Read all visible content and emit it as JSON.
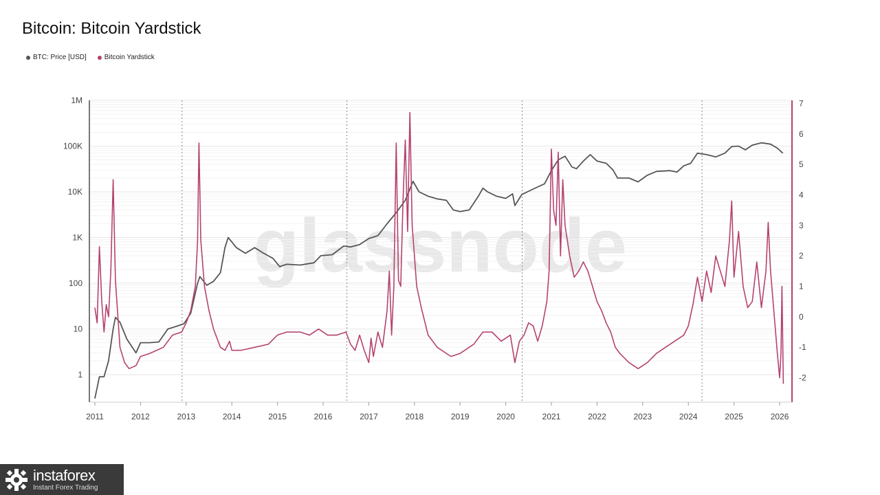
{
  "page": {
    "title": "Bitcoin: Bitcoin Yardstick",
    "watermark": "glassnode"
  },
  "legend": [
    {
      "label": "BTC: Price [USD]",
      "color": "#555555"
    },
    {
      "label": "Bitcoin Yardstick",
      "color": "#b5416f"
    }
  ],
  "branding": {
    "name": "instaforex",
    "tagline": "Instant Forex Trading"
  },
  "chart_data": {
    "type": "line",
    "title": "Bitcoin: Bitcoin Yardstick",
    "x_ticks": [
      "2011",
      "2012",
      "2013",
      "2014",
      "2015",
      "2016",
      "2017",
      "2018",
      "2019",
      "2020",
      "2021",
      "2022",
      "2023",
      "2024",
      "2025",
      "2026"
    ],
    "y_left": {
      "scale": "log",
      "ticks": [
        "1",
        "10",
        "100",
        "1K",
        "10K",
        "100K",
        "1M"
      ],
      "tick_values": [
        1,
        10,
        100,
        1000,
        10000,
        100000,
        1000000
      ]
    },
    "y_right": {
      "scale": "linear",
      "ticks": [
        "-2",
        "-1",
        "0",
        "1",
        "2",
        "3",
        "4",
        "5",
        "6",
        "7"
      ],
      "range": [
        -2.8,
        7.1
      ]
    },
    "halving_dates": [
      2012.91,
      2016.52,
      2020.36,
      2024.3
    ],
    "grid": true,
    "legend_position": "top-left",
    "series": [
      {
        "name": "BTC: Price [USD]",
        "axis": "left",
        "color": "#555555",
        "points": [
          [
            2011.0,
            0.3
          ],
          [
            2011.1,
            0.9
          ],
          [
            2011.2,
            0.9
          ],
          [
            2011.3,
            2
          ],
          [
            2011.4,
            10
          ],
          [
            2011.45,
            18
          ],
          [
            2011.55,
            14
          ],
          [
            2011.7,
            6
          ],
          [
            2011.9,
            3
          ],
          [
            2012.0,
            5
          ],
          [
            2012.2,
            5
          ],
          [
            2012.4,
            5.2
          ],
          [
            2012.6,
            10
          ],
          [
            2012.8,
            11.5
          ],
          [
            2012.95,
            13
          ],
          [
            2013.1,
            22
          ],
          [
            2013.25,
            100
          ],
          [
            2013.3,
            140
          ],
          [
            2013.45,
            90
          ],
          [
            2013.6,
            110
          ],
          [
            2013.75,
            170
          ],
          [
            2013.85,
            600
          ],
          [
            2013.92,
            1000
          ],
          [
            2014.0,
            800
          ],
          [
            2014.1,
            600
          ],
          [
            2014.3,
            450
          ],
          [
            2014.5,
            600
          ],
          [
            2014.7,
            450
          ],
          [
            2014.9,
            350
          ],
          [
            2015.05,
            230
          ],
          [
            2015.2,
            260
          ],
          [
            2015.5,
            250
          ],
          [
            2015.8,
            280
          ],
          [
            2015.95,
            400
          ],
          [
            2016.2,
            420
          ],
          [
            2016.45,
            650
          ],
          [
            2016.6,
            620
          ],
          [
            2016.8,
            700
          ],
          [
            2017.0,
            950
          ],
          [
            2017.2,
            1100
          ],
          [
            2017.4,
            2000
          ],
          [
            2017.6,
            3500
          ],
          [
            2017.8,
            6500
          ],
          [
            2017.97,
            17000
          ],
          [
            2018.1,
            10000
          ],
          [
            2018.3,
            8000
          ],
          [
            2018.5,
            7000
          ],
          [
            2018.7,
            6500
          ],
          [
            2018.85,
            4000
          ],
          [
            2019.0,
            3700
          ],
          [
            2019.2,
            4000
          ],
          [
            2019.4,
            8000
          ],
          [
            2019.5,
            12000
          ],
          [
            2019.6,
            10000
          ],
          [
            2019.8,
            8000
          ],
          [
            2020.0,
            7200
          ],
          [
            2020.15,
            9000
          ],
          [
            2020.2,
            5000
          ],
          [
            2020.35,
            8700
          ],
          [
            2020.6,
            11500
          ],
          [
            2020.85,
            15000
          ],
          [
            2021.0,
            29000
          ],
          [
            2021.15,
            50000
          ],
          [
            2021.3,
            60000
          ],
          [
            2021.45,
            35000
          ],
          [
            2021.55,
            32000
          ],
          [
            2021.7,
            47000
          ],
          [
            2021.85,
            65000
          ],
          [
            2022.0,
            47000
          ],
          [
            2022.2,
            42000
          ],
          [
            2022.35,
            30000
          ],
          [
            2022.45,
            20000
          ],
          [
            2022.7,
            20000
          ],
          [
            2022.9,
            16500
          ],
          [
            2023.1,
            23000
          ],
          [
            2023.3,
            28000
          ],
          [
            2023.6,
            29000
          ],
          [
            2023.75,
            27000
          ],
          [
            2023.9,
            37000
          ],
          [
            2024.05,
            42000
          ],
          [
            2024.2,
            70000
          ],
          [
            2024.4,
            65000
          ],
          [
            2024.6,
            58000
          ],
          [
            2024.8,
            70000
          ],
          [
            2024.95,
            98000
          ],
          [
            2025.1,
            100000
          ],
          [
            2025.25,
            83000
          ],
          [
            2025.4,
            105000
          ],
          [
            2025.6,
            118000
          ],
          [
            2025.8,
            110000
          ],
          [
            2025.95,
            90000
          ],
          [
            2026.07,
            70000
          ]
        ]
      },
      {
        "name": "Bitcoin Yardstick",
        "axis": "right",
        "color": "#b5416f",
        "points": [
          [
            2011.0,
            0.3
          ],
          [
            2011.05,
            -0.2
          ],
          [
            2011.1,
            2.3
          ],
          [
            2011.15,
            0.5
          ],
          [
            2011.2,
            -0.5
          ],
          [
            2011.25,
            0.4
          ],
          [
            2011.3,
            0.0
          ],
          [
            2011.35,
            1.5
          ],
          [
            2011.4,
            4.5
          ],
          [
            2011.45,
            1.2
          ],
          [
            2011.55,
            -1.0
          ],
          [
            2011.65,
            -1.5
          ],
          [
            2011.75,
            -1.7
          ],
          [
            2011.9,
            -1.6
          ],
          [
            2012.0,
            -1.3
          ],
          [
            2012.2,
            -1.2
          ],
          [
            2012.5,
            -1.0
          ],
          [
            2012.7,
            -0.6
          ],
          [
            2012.9,
            -0.5
          ],
          [
            2013.0,
            -0.2
          ],
          [
            2013.1,
            0.2
          ],
          [
            2013.2,
            1.0
          ],
          [
            2013.25,
            2.5
          ],
          [
            2013.28,
            5.7
          ],
          [
            2013.32,
            2.5
          ],
          [
            2013.4,
            1.0
          ],
          [
            2013.5,
            0.2
          ],
          [
            2013.6,
            -0.4
          ],
          [
            2013.75,
            -1.0
          ],
          [
            2013.85,
            -1.1
          ],
          [
            2013.95,
            -0.8
          ],
          [
            2014.0,
            -1.1
          ],
          [
            2014.2,
            -1.1
          ],
          [
            2014.5,
            -1.0
          ],
          [
            2014.8,
            -0.9
          ],
          [
            2015.0,
            -0.6
          ],
          [
            2015.2,
            -0.5
          ],
          [
            2015.5,
            -0.5
          ],
          [
            2015.7,
            -0.6
          ],
          [
            2015.9,
            -0.4
          ],
          [
            2016.1,
            -0.6
          ],
          [
            2016.3,
            -0.6
          ],
          [
            2016.5,
            -0.5
          ],
          [
            2016.6,
            -0.9
          ],
          [
            2016.7,
            -1.1
          ],
          [
            2016.8,
            -0.6
          ],
          [
            2016.9,
            -1.1
          ],
          [
            2017.0,
            -1.5
          ],
          [
            2017.05,
            -0.7
          ],
          [
            2017.1,
            -1.3
          ],
          [
            2017.2,
            -0.5
          ],
          [
            2017.3,
            -1.0
          ],
          [
            2017.4,
            0.2
          ],
          [
            2017.45,
            1.5
          ],
          [
            2017.5,
            -0.6
          ],
          [
            2017.55,
            1.0
          ],
          [
            2017.6,
            5.7
          ],
          [
            2017.65,
            1.2
          ],
          [
            2017.7,
            1.0
          ],
          [
            2017.75,
            3.8
          ],
          [
            2017.8,
            5.8
          ],
          [
            2017.85,
            2.8
          ],
          [
            2017.9,
            6.7
          ],
          [
            2017.95,
            3.0
          ],
          [
            2018.05,
            1.0
          ],
          [
            2018.15,
            0.3
          ],
          [
            2018.3,
            -0.6
          ],
          [
            2018.5,
            -1.0
          ],
          [
            2018.8,
            -1.3
          ],
          [
            2019.0,
            -1.2
          ],
          [
            2019.3,
            -0.9
          ],
          [
            2019.5,
            -0.5
          ],
          [
            2019.7,
            -0.5
          ],
          [
            2019.9,
            -0.8
          ],
          [
            2020.1,
            -0.6
          ],
          [
            2020.2,
            -1.5
          ],
          [
            2020.3,
            -0.8
          ],
          [
            2020.4,
            -0.6
          ],
          [
            2020.5,
            -0.2
          ],
          [
            2020.6,
            -0.3
          ],
          [
            2020.7,
            -0.8
          ],
          [
            2020.8,
            -0.3
          ],
          [
            2020.9,
            0.5
          ],
          [
            2020.95,
            1.5
          ],
          [
            2021.0,
            5.5
          ],
          [
            2021.05,
            3.5
          ],
          [
            2021.1,
            3.0
          ],
          [
            2021.15,
            5.4
          ],
          [
            2021.2,
            2.0
          ],
          [
            2021.25,
            4.5
          ],
          [
            2021.3,
            3.0
          ],
          [
            2021.4,
            2.0
          ],
          [
            2021.5,
            1.3
          ],
          [
            2021.6,
            1.5
          ],
          [
            2021.7,
            1.8
          ],
          [
            2021.8,
            1.5
          ],
          [
            2021.9,
            1.0
          ],
          [
            2022.0,
            0.5
          ],
          [
            2022.1,
            0.2
          ],
          [
            2022.2,
            -0.2
          ],
          [
            2022.3,
            -0.5
          ],
          [
            2022.4,
            -1.0
          ],
          [
            2022.5,
            -1.2
          ],
          [
            2022.7,
            -1.5
          ],
          [
            2022.9,
            -1.7
          ],
          [
            2023.1,
            -1.5
          ],
          [
            2023.3,
            -1.2
          ],
          [
            2023.5,
            -1.0
          ],
          [
            2023.7,
            -0.8
          ],
          [
            2023.9,
            -0.6
          ],
          [
            2024.0,
            -0.3
          ],
          [
            2024.1,
            0.4
          ],
          [
            2024.2,
            1.3
          ],
          [
            2024.3,
            0.5
          ],
          [
            2024.4,
            1.5
          ],
          [
            2024.5,
            0.8
          ],
          [
            2024.6,
            2.0
          ],
          [
            2024.7,
            1.5
          ],
          [
            2024.8,
            1.0
          ],
          [
            2024.9,
            2.5
          ],
          [
            2024.95,
            3.8
          ],
          [
            2025.0,
            1.3
          ],
          [
            2025.1,
            2.8
          ],
          [
            2025.2,
            1.0
          ],
          [
            2025.3,
            0.3
          ],
          [
            2025.4,
            0.5
          ],
          [
            2025.5,
            1.8
          ],
          [
            2025.6,
            0.3
          ],
          [
            2025.7,
            1.5
          ],
          [
            2025.75,
            3.1
          ],
          [
            2025.8,
            1.5
          ],
          [
            2025.9,
            -0.3
          ],
          [
            2025.95,
            -1.2
          ],
          [
            2026.0,
            -2.0
          ],
          [
            2026.03,
            -1.2
          ],
          [
            2026.05,
            1.0
          ],
          [
            2026.08,
            -2.2
          ]
        ]
      }
    ]
  }
}
